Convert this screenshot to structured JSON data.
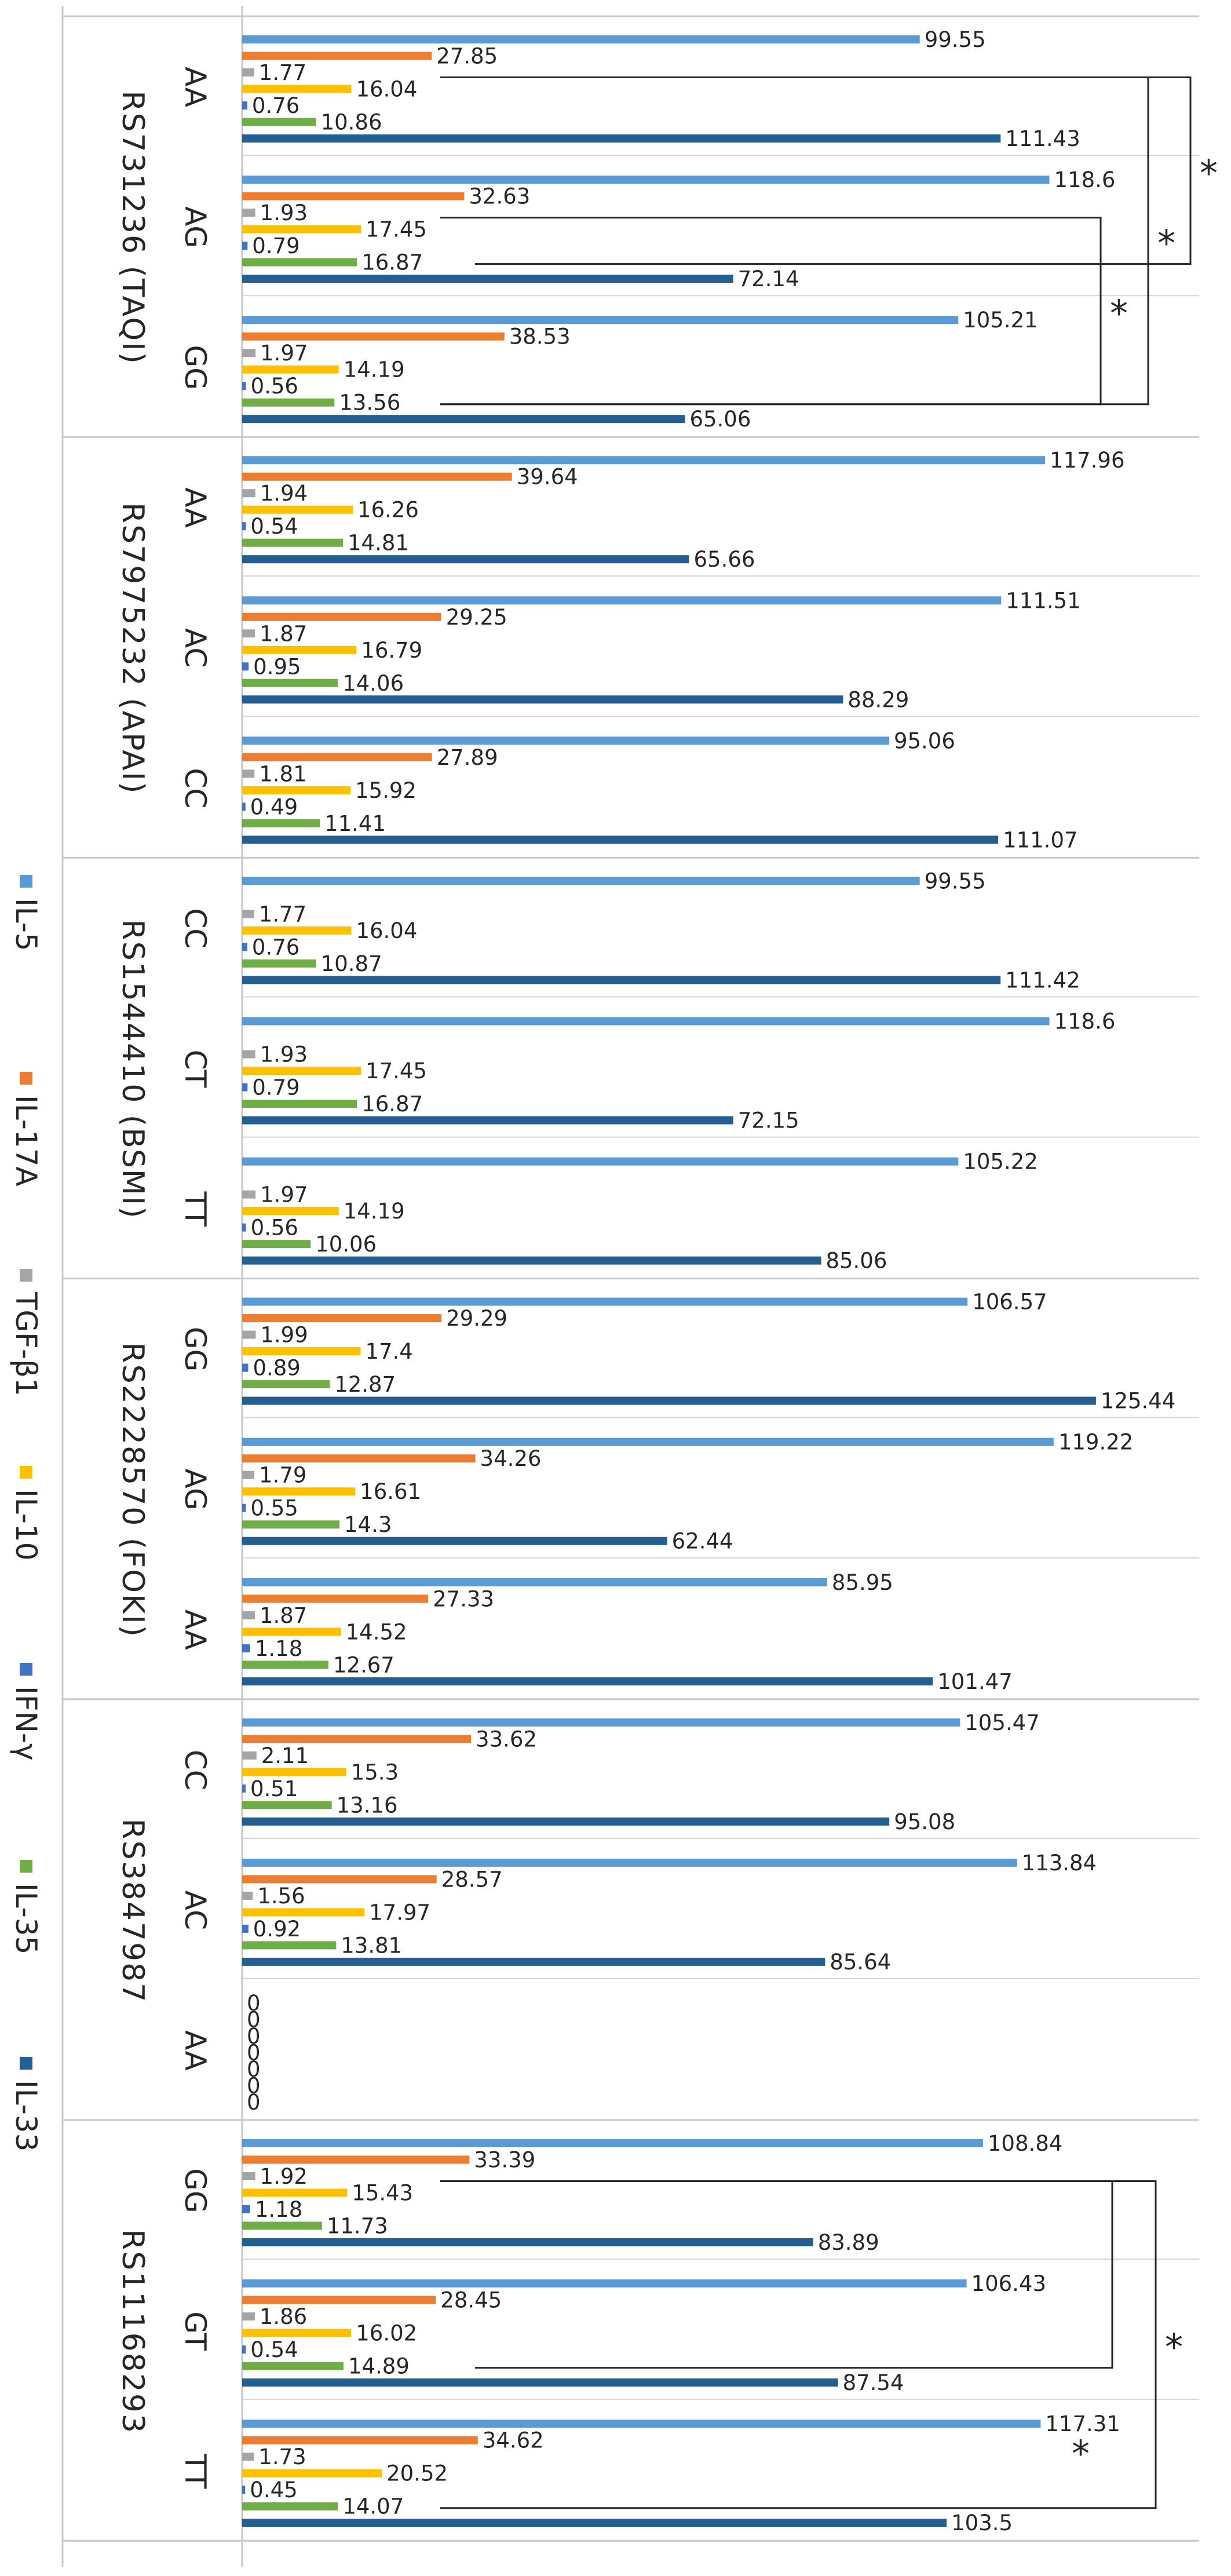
{
  "chart_data": {
    "type": "bar",
    "orientation": "horizontal",
    "title": "",
    "xlabel": "",
    "ylabel": "",
    "xlim": [
      0,
      130
    ],
    "grid": true,
    "legend_position": "left",
    "series": [
      {
        "name": "IL-5",
        "color": "#5B9BD5"
      },
      {
        "name": "IL-17A",
        "color": "#ED7D31"
      },
      {
        "name": "TGF-β1",
        "color": "#A5A5A5"
      },
      {
        "name": "IL-10",
        "color": "#FFC000"
      },
      {
        "name": "IFN-γ",
        "color": "#4472C4"
      },
      {
        "name": "IL-35",
        "color": "#70AD47"
      },
      {
        "name": "IL-33",
        "color": "#255E91"
      }
    ],
    "groups": [
      {
        "snp": "RS731236 (TAQI)",
        "genotypes": [
          {
            "label": "AA",
            "values": [
              99.55,
              27.85,
              1.77,
              16.04,
              0.76,
              10.86,
              111.43
            ]
          },
          {
            "label": "AG",
            "values": [
              118.6,
              32.63,
              1.93,
              17.45,
              0.79,
              16.87,
              72.14
            ]
          },
          {
            "label": "GG",
            "values": [
              105.21,
              38.53,
              1.97,
              14.19,
              0.56,
              13.56,
              65.06
            ]
          }
        ],
        "significance": [
          {
            "from": "AA",
            "to": "AG",
            "label": "*"
          },
          {
            "from": "AG",
            "to": "GG",
            "label": "*"
          },
          {
            "from": "AA",
            "to": "GG",
            "label": "*"
          }
        ]
      },
      {
        "snp": "RS7975232 (APAI)",
        "genotypes": [
          {
            "label": "AA",
            "values": [
              117.96,
              39.64,
              1.94,
              16.26,
              0.54,
              14.81,
              65.66
            ]
          },
          {
            "label": "AC",
            "values": [
              111.51,
              29.25,
              1.87,
              16.79,
              0.95,
              14.06,
              88.29
            ]
          },
          {
            "label": "CC",
            "values": [
              95.06,
              27.89,
              1.81,
              15.92,
              0.49,
              11.41,
              111.07
            ]
          }
        ],
        "significance": []
      },
      {
        "snp": "RS1544410 (BSMI)",
        "genotypes": [
          {
            "label": "CC",
            "values": [
              99.55,
              null,
              1.77,
              16.04,
              0.76,
              10.87,
              111.42
            ]
          },
          {
            "label": "CT",
            "values": [
              118.6,
              null,
              1.93,
              17.45,
              0.79,
              16.87,
              72.15
            ]
          },
          {
            "label": "TT",
            "values": [
              105.22,
              null,
              1.97,
              14.19,
              0.56,
              10.06,
              85.06
            ]
          }
        ],
        "significance": []
      },
      {
        "snp": "RS2228570 (FOKI)",
        "genotypes": [
          {
            "label": "GG",
            "values": [
              106.57,
              29.29,
              1.99,
              17.4,
              0.89,
              12.87,
              125.44
            ]
          },
          {
            "label": "AG",
            "values": [
              119.22,
              34.26,
              1.79,
              16.61,
              0.55,
              14.3,
              62.44
            ]
          },
          {
            "label": "AA",
            "values": [
              85.95,
              27.33,
              1.87,
              14.52,
              1.18,
              12.67,
              101.47
            ]
          }
        ],
        "significance": []
      },
      {
        "snp": "RS3847987",
        "genotypes": [
          {
            "label": "CC",
            "values": [
              105.47,
              33.62,
              2.11,
              15.3,
              0.51,
              13.16,
              95.08
            ]
          },
          {
            "label": "AC",
            "values": [
              113.84,
              28.57,
              1.56,
              17.97,
              0.92,
              13.81,
              85.64
            ]
          },
          {
            "label": "AA",
            "values": [
              0,
              0,
              0,
              0,
              0,
              0,
              0
            ]
          }
        ],
        "significance": []
      },
      {
        "snp": "RS11168293",
        "genotypes": [
          {
            "label": "GG",
            "values": [
              108.84,
              33.39,
              1.92,
              15.43,
              1.18,
              11.73,
              83.89
            ]
          },
          {
            "label": "GT",
            "values": [
              106.43,
              28.45,
              1.86,
              16.02,
              0.54,
              14.89,
              87.54
            ]
          },
          {
            "label": "TT",
            "values": [
              117.31,
              34.62,
              1.73,
              20.52,
              0.45,
              14.07,
              103.5
            ]
          }
        ],
        "significance": [
          {
            "from": "GG",
            "to": "GT",
            "label": "*"
          },
          {
            "from": "GG",
            "to": "TT",
            "label": "*"
          }
        ]
      }
    ]
  }
}
